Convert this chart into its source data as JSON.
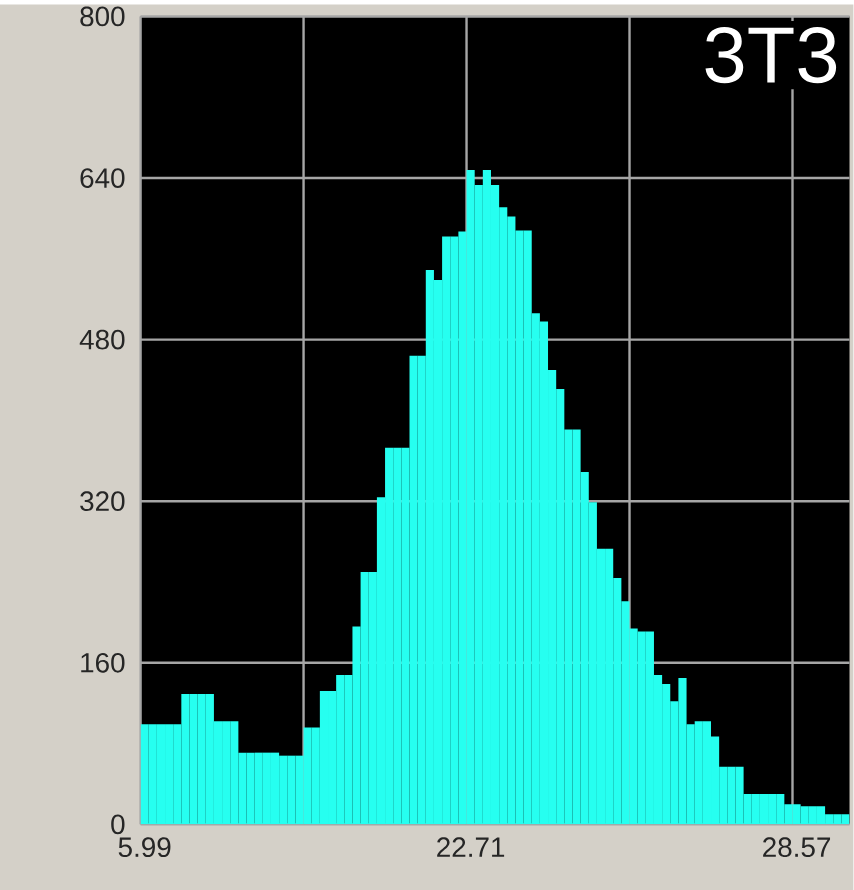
{
  "chart_data": {
    "type": "bar",
    "annotations": [
      "3T3"
    ],
    "categories": [
      "5.99",
      null,
      null,
      null,
      null,
      null,
      null,
      null,
      null,
      null,
      null,
      null,
      null,
      null,
      null,
      null,
      null,
      null,
      null,
      null,
      null,
      null,
      null,
      null,
      null,
      null,
      null,
      null,
      null,
      null,
      null,
      null,
      null,
      null,
      null,
      null,
      null,
      null,
      null,
      null,
      "22.71",
      null,
      null,
      null,
      null,
      null,
      null,
      null,
      null,
      null,
      null,
      null,
      null,
      null,
      null,
      null,
      null,
      null,
      null,
      null,
      null,
      null,
      null,
      null,
      null,
      null,
      null,
      null,
      null,
      null,
      null,
      null,
      null,
      null,
      null,
      null,
      null,
      null,
      null,
      null,
      "28.57",
      null,
      null,
      null,
      null,
      null,
      null
    ],
    "values": [
      99,
      99,
      99,
      99,
      99,
      129,
      129,
      129,
      129,
      102,
      102,
      102,
      71,
      71,
      71,
      71,
      71,
      68,
      68,
      68,
      96,
      96,
      132,
      132,
      148,
      148,
      196,
      250,
      250,
      324,
      373,
      373,
      373,
      464,
      464,
      549,
      539,
      582,
      582,
      587,
      648,
      633,
      648,
      633,
      611,
      602,
      588,
      588,
      506,
      498,
      450,
      431,
      391,
      391,
      349,
      319,
      273,
      273,
      244,
      221,
      194,
      191,
      191,
      148,
      139,
      122,
      145,
      99,
      102,
      102,
      87,
      57,
      57,
      57,
      30,
      30,
      30,
      30,
      30,
      20,
      20,
      18,
      18,
      18,
      10,
      10,
      10
    ],
    "color": "#26fff0",
    "ylim": [
      0,
      800
    ],
    "yticks": [
      0,
      160,
      320,
      480,
      640,
      800
    ],
    "grid": true
  }
}
